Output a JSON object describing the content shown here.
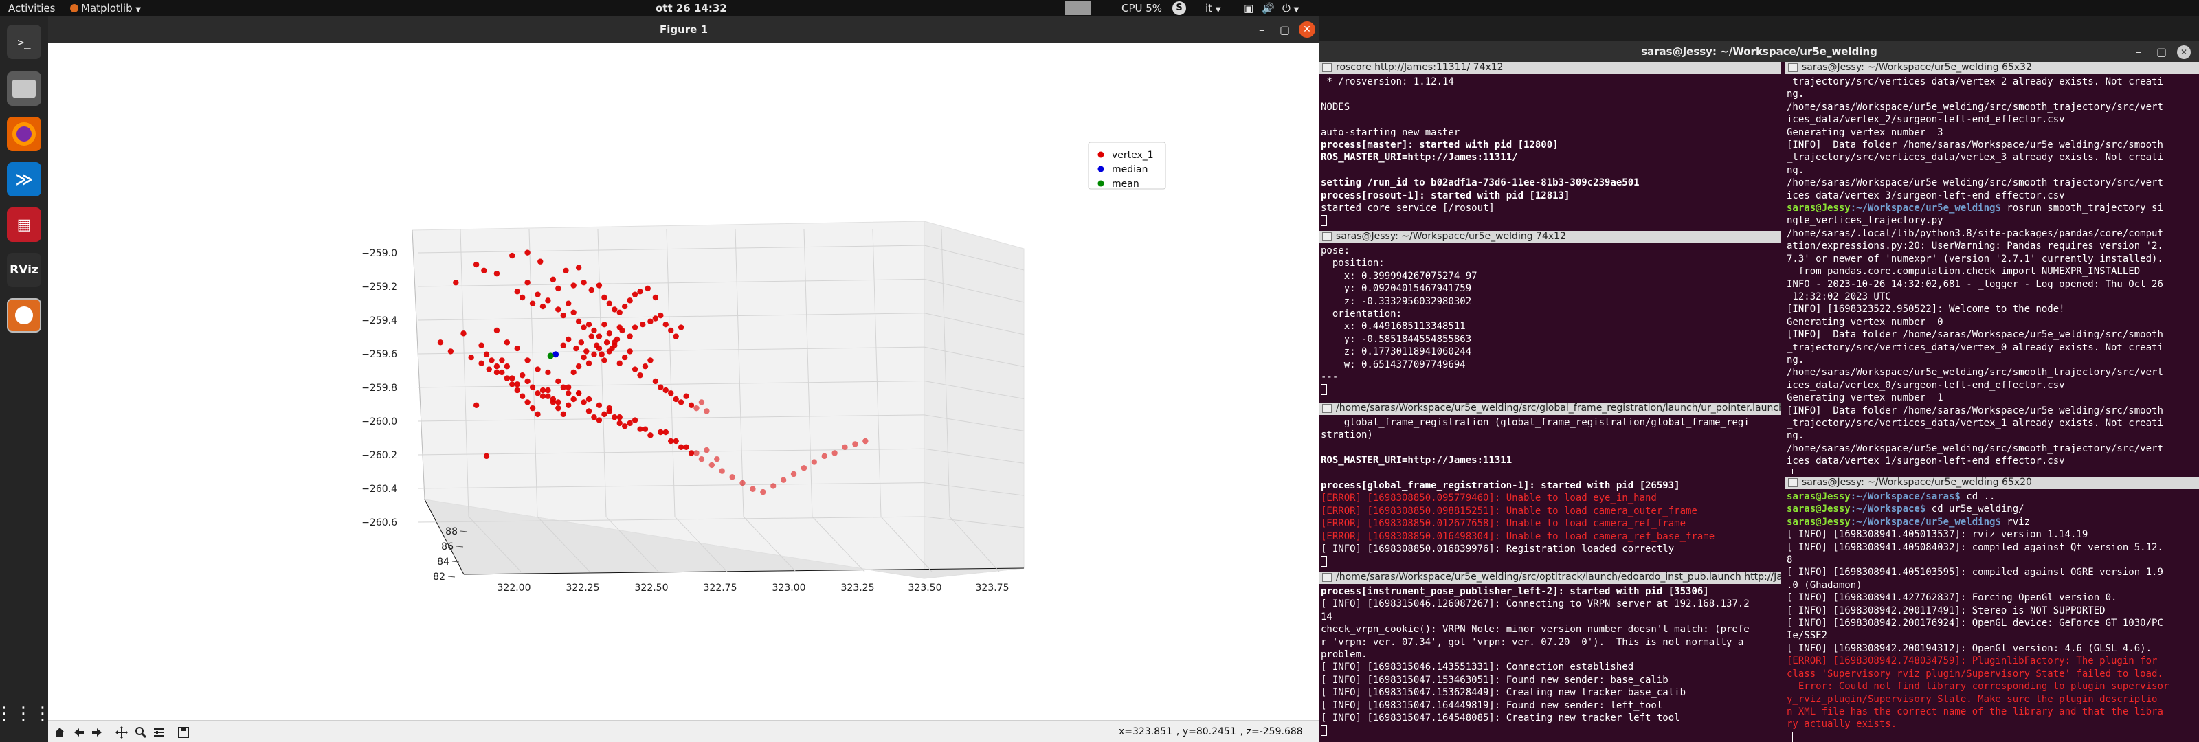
{
  "topbar": {
    "activities": "Activities",
    "app": "Matplotlib",
    "clock": "ott 26  14:32",
    "cpu": "CPU 5%",
    "lang": "it"
  },
  "dock": [
    {
      "name": "terminal",
      "bg": "#3a3a3a"
    },
    {
      "name": "files",
      "bg": "#5a5a5a"
    },
    {
      "name": "firefox",
      "bg": "#e66000"
    },
    {
      "name": "vscode",
      "bg": "#0a74c9"
    },
    {
      "name": "system-monitor",
      "bg": "#c01c28"
    },
    {
      "name": "rviz",
      "bg": "#2e2e2e"
    },
    {
      "name": "matplotlib",
      "bg": "#dd6a1e"
    }
  ],
  "dock_rviz_label": "RViz",
  "figure": {
    "title": "Figure 1",
    "coords": {
      "x": "x=323.851",
      "y": ", y=80.2451",
      "z": ", z=-259.688"
    }
  },
  "chart_data": {
    "type": "scatter",
    "title": "",
    "legend": {
      "placement": "top-right",
      "entries": [
        {
          "name": "vertex_1",
          "color": "#dd0000"
        },
        {
          "name": "median",
          "color": "#0000dd"
        },
        {
          "name": "mean",
          "color": "#008800"
        }
      ]
    },
    "x_ticks": [
      "322.00",
      "322.25",
      "322.50",
      "322.75",
      "323.00",
      "323.25",
      "323.50",
      "323.75"
    ],
    "y_ticks": [
      "88",
      "86",
      "84",
      "82"
    ],
    "z_ticks": [
      "−259.0",
      "−259.2",
      "−259.4",
      "−259.6",
      "−259.8",
      "−260.0",
      "−260.2",
      "−260.4",
      "−260.6"
    ],
    "xlim": [
      321.85,
      323.85
    ],
    "zlim": [
      -260.75,
      -258.95
    ],
    "series": [
      {
        "name": "vertex_1",
        "x": [
          322.02,
          322.1,
          322.13,
          322.18,
          322.24,
          322.3,
          322.35,
          322.4,
          322.42,
          322.45,
          322.48,
          322.5,
          322.52,
          322.55,
          322.58,
          322.6,
          322.62,
          322.64,
          322.66,
          322.68,
          322.7,
          322.72,
          322.74,
          322.77,
          322.8,
          322.26,
          322.28,
          322.3,
          322.32,
          322.34,
          322.36,
          322.38,
          322.42,
          322.44,
          322.46,
          322.48,
          322.5,
          322.52,
          322.54,
          322.56,
          322.58,
          322.6,
          322.62,
          322.64,
          322.66,
          322.44,
          322.46,
          322.49,
          322.51,
          322.53,
          322.55,
          322.57,
          322.59,
          322.61,
          322.63,
          322.65,
          322.67,
          322.7,
          322.72,
          322.75,
          322.78,
          322.8,
          322.82,
          322.84,
          322.86,
          322.88,
          322.9,
          321.96,
          322.0,
          322.05,
          322.08,
          322.12,
          322.15,
          322.18,
          322.2,
          322.22,
          322.24,
          322.26,
          322.28,
          322.3,
          322.32,
          322.34,
          322.36,
          322.38,
          322.4,
          322.42,
          322.44,
          322.46,
          322.48,
          322.5,
          322.52,
          322.54,
          322.56,
          322.58,
          322.6,
          322.62,
          322.64,
          322.66,
          322.68,
          322.7,
          322.72,
          322.74,
          322.76,
          322.78,
          322.8,
          322.82,
          322.84,
          322.86,
          322.88,
          322.9,
          322.92,
          322.94,
          322.96,
          322.98,
          323.0,
          322.1,
          322.12,
          322.14,
          322.16,
          322.18,
          322.2,
          322.22,
          322.24,
          322.26,
          322.28,
          322.3,
          322.32,
          322.34,
          322.36,
          322.38,
          322.4,
          322.42,
          322.44,
          322.46,
          322.48,
          322.5,
          322.52,
          322.54,
          322.56,
          322.58,
          322.6,
          322.62,
          322.64,
          322.66,
          322.68,
          322.72,
          322.76,
          322.84,
          322.88,
          322.92,
          322.96,
          323.0,
          323.04,
          322.14,
          322.18,
          322.22,
          322.26,
          322.3,
          322.34,
          322.38,
          322.42,
          322.46,
          322.5,
          322.54,
          322.58,
          322.62,
          322.66,
          322.7,
          322.74,
          322.78,
          322.82,
          322.86,
          322.9,
          322.94,
          322.98,
          323.02,
          323.06,
          323.1,
          323.14,
          323.18,
          323.22,
          323.26,
          323.3,
          323.34,
          323.38,
          323.42,
          323.46,
          323.5,
          323.54,
          323.58,
          323.62
        ],
        "z": [
          -259.3,
          -259.18,
          -259.22,
          -259.24,
          -259.12,
          -259.1,
          -259.16,
          -259.28,
          -259.34,
          -259.22,
          -259.32,
          -259.2,
          -259.3,
          -259.35,
          -259.32,
          -259.4,
          -259.44,
          -259.48,
          -259.5,
          -259.46,
          -259.42,
          -259.38,
          -259.36,
          -259.34,
          -259.4,
          -259.36,
          -259.4,
          -259.3,
          -259.44,
          -259.38,
          -259.46,
          -259.42,
          -259.48,
          -259.52,
          -259.44,
          -259.5,
          -259.56,
          -259.6,
          -259.58,
          -259.62,
          -259.66,
          -259.58,
          -259.64,
          -259.7,
          -259.6,
          -259.72,
          -259.68,
          -259.74,
          -259.7,
          -259.76,
          -259.66,
          -259.72,
          -259.78,
          -259.7,
          -259.74,
          -259.68,
          -259.62,
          -259.66,
          -259.6,
          -259.58,
          -259.56,
          -259.54,
          -259.52,
          -259.58,
          -259.62,
          -259.66,
          -259.6,
          -259.7,
          -259.76,
          -259.64,
          -259.8,
          -259.84,
          -259.88,
          -259.9,
          -259.82,
          -259.86,
          -259.94,
          -259.98,
          -259.92,
          -259.96,
          -260.0,
          -260.04,
          -260.02,
          -260.06,
          -260.08,
          -260.1,
          -260.0,
          -260.04,
          -259.9,
          -259.86,
          -259.8,
          -259.84,
          -259.78,
          -259.74,
          -259.82,
          -259.76,
          -259.72,
          -259.84,
          -259.8,
          -259.76,
          -259.88,
          -259.92,
          -259.86,
          -259.82,
          -259.96,
          -260.0,
          -260.02,
          -260.04,
          -260.08,
          -260.1,
          -260.06,
          -260.12,
          -260.14,
          -260.1,
          -260.16,
          -260.12,
          -259.72,
          -259.78,
          -259.82,
          -259.86,
          -259.9,
          -259.94,
          -259.98,
          -260.02,
          -260.06,
          -260.1,
          -260.14,
          -260.18,
          -260.06,
          -260.02,
          -260.1,
          -260.14,
          -260.18,
          -260.12,
          -260.08,
          -260.04,
          -260.1,
          -260.16,
          -260.2,
          -260.22,
          -260.18,
          -260.14,
          -260.2,
          -260.24,
          -260.26,
          -260.22,
          -260.28,
          -260.3,
          -260.36,
          -260.4,
          -260.44,
          -260.42,
          -260.48,
          -260.46,
          -259.62,
          -259.7,
          -259.74,
          -259.82,
          -259.88,
          -259.9,
          -259.96,
          -260.0,
          -260.04,
          -260.08,
          -260.12,
          -260.16,
          -260.2,
          -260.24,
          -260.28,
          -260.32,
          -260.3,
          -260.36,
          -260.4,
          -260.44,
          -260.48,
          -260.52,
          -260.56,
          -260.6,
          -260.64,
          -260.68,
          -260.7,
          -260.66,
          -260.62,
          -260.58,
          -260.54,
          -260.5,
          -260.46,
          -260.44,
          -260.4,
          -260.38,
          -260.36,
          -260.42
        ]
      },
      {
        "name": "median",
        "x": [
          322.41
        ],
        "z": [
          -259.78
        ]
      },
      {
        "name": "mean",
        "x": [
          322.39
        ],
        "z": [
          -259.79
        ]
      }
    ]
  },
  "terminal": {
    "title": "saras@Jessy: ~/Workspace/ur5e_welding"
  },
  "panes": [
    {
      "title": "roscore http://James:11311/ 74x12",
      "lines": [
        {
          "t": " * /rosversion: 1.12.14",
          "c": ""
        },
        {
          "t": "",
          "c": ""
        },
        {
          "t": "NODES",
          "c": ""
        },
        {
          "t": "",
          "c": ""
        },
        {
          "t": "auto-starting new master",
          "c": ""
        },
        {
          "t": "process[master]: started with pid [12800]",
          "c": "bold"
        },
        {
          "t": "ROS_MASTER_URI=http://James:11311/",
          "c": "bold"
        },
        {
          "t": "",
          "c": ""
        },
        {
          "t": "setting /run_id to b02adf1a-73d6-11ee-81b3-309c239ae501",
          "c": "bold"
        },
        {
          "t": "process[rosout-1]: started with pid [12813]",
          "c": "bold"
        },
        {
          "t": "started core service [/rosout]",
          "c": ""
        }
      ]
    },
    {
      "title": "saras@Jessy: ~/Workspace/ur5e_welding 74x12",
      "lines": [
        {
          "t": "pose:",
          "c": ""
        },
        {
          "t": "  position:",
          "c": ""
        },
        {
          "t": "    x: 0.399994267075274 97",
          "c": ""
        },
        {
          "t": "    y: 0.09204015467941759",
          "c": ""
        },
        {
          "t": "    z: -0.3332956032980302",
          "c": ""
        },
        {
          "t": "  orientation:",
          "c": ""
        },
        {
          "t": "    x: 0.4491685113348511",
          "c": ""
        },
        {
          "t": "    y: -0.5851844554855863",
          "c": ""
        },
        {
          "t": "    z: 0.17730118941060244",
          "c": ""
        },
        {
          "t": "    w: 0.6514377097749694",
          "c": ""
        },
        {
          "t": "---",
          "c": ""
        }
      ]
    },
    {
      "title": "/home/saras/Workspace/ur5e_welding/src/global_frame_registration/launch/ur_pointer.launch http://James:11311",
      "lines": [
        {
          "t": "    global_frame_registration (global_frame_registration/global_frame_regi",
          "c": ""
        },
        {
          "t": "stration)",
          "c": ""
        },
        {
          "t": "",
          "c": ""
        },
        {
          "t": "ROS_MASTER_URI=http://James:11311",
          "c": "bold"
        },
        {
          "t": "",
          "c": ""
        },
        {
          "t": "process[global_frame_registration-1]: started with pid [26593]",
          "c": "bold"
        },
        {
          "t": "[ERROR] [1698308850.095779460]: Unable to load eye_in_hand",
          "c": "err"
        },
        {
          "t": "[ERROR] [1698308850.098815251]: Unable to load camera_outer_frame",
          "c": "err"
        },
        {
          "t": "[ERROR] [1698308850.012677658]: Unable to load camera_ref_frame",
          "c": "err"
        },
        {
          "t": "[ERROR] [1698308850.016498304]: Unable to load camera_ref_base_frame",
          "c": "err"
        },
        {
          "t": "[ INFO] [1698308850.016839976]: Registration loaded correctly",
          "c": ""
        }
      ]
    },
    {
      "title": "/home/saras/Workspace/ur5e_welding/src/optitrack/launch/edoardo_inst_pub.launch http://James:11311",
      "lines": [
        {
          "t": "process[instrunent_pose_publisher_left-2]: started with pid [35306]",
          "c": "bold"
        },
        {
          "t": "[ INFO] [1698315046.126087267]: Connecting to VRPN server at 192.168.137.2",
          "c": ""
        },
        {
          "t": "14",
          "c": ""
        },
        {
          "t": "check_vrpn_cookie(): VRPN Note: minor version number doesn't match: (prefe",
          "c": ""
        },
        {
          "t": "r 'vrpn: ver. 07.34', got 'vrpn: ver. 07.20  0').  This is not normally a",
          "c": ""
        },
        {
          "t": "problem.",
          "c": ""
        },
        {
          "t": "[ INFO] [1698315046.143551331]: Connection established",
          "c": ""
        },
        {
          "t": "[ INFO] [1698315047.153463051]: Found new sender: base_calib",
          "c": ""
        },
        {
          "t": "[ INFO] [1698315047.153628449]: Creating new tracker base_calib",
          "c": ""
        },
        {
          "t": "[ INFO] [1698315047.164449819]: Found new sender: left_tool",
          "c": ""
        },
        {
          "t": "[ INFO] [1698315047.164548085]: Creating new tracker left_tool",
          "c": ""
        }
      ]
    },
    {
      "title": "saras@Jessy: ~/Workspace/ur5e_welding 65x32",
      "lines": [
        {
          "t": "_trajectory/src/vertices_data/vertex_2 already exists. Not creati",
          "c": ""
        },
        {
          "t": "ng.",
          "c": ""
        },
        {
          "t": "/home/saras/Workspace/ur5e_welding/src/smooth_trajectory/src/vert",
          "c": ""
        },
        {
          "t": "ices_data/vertex_2/surgeon-left-end_effector.csv",
          "c": ""
        },
        {
          "t": "Generating vertex number  3",
          "c": ""
        },
        {
          "t": "[INFO]  Data folder /home/saras/Workspace/ur5e_welding/src/smooth",
          "c": ""
        },
        {
          "t": "_trajectory/src/vertices_data/vertex_3 already exists. Not creati",
          "c": ""
        },
        {
          "t": "ng.",
          "c": ""
        },
        {
          "t": "/home/saras/Workspace/ur5e_welding/src/smooth_trajectory/src/vert",
          "c": ""
        },
        {
          "t": "ices_data/vertex_3/surgeon-left-end_effector.csv",
          "c": ""
        },
        {
          "t": "",
          "c": "prompt",
          "cmd": " rosrun smooth_trajectory si",
          "p": "saras@Jessy",
          "w": ":~/Workspace/ur5e_welding$"
        },
        {
          "t": "ngle_vertices_trajectory.py",
          "c": ""
        },
        {
          "t": "/home/saras/.local/lib/python3.8/site-packages/pandas/core/comput",
          "c": ""
        },
        {
          "t": "ation/expressions.py:20: UserWarning: Pandas requires version '2.",
          "c": ""
        },
        {
          "t": "7.3' or newer of 'numexpr' (version '2.7.1' currently installed).",
          "c": ""
        },
        {
          "t": "  from pandas.core.computation.check import NUMEXPR_INSTALLED",
          "c": ""
        },
        {
          "t": "INFO - 2023-10-26 14:32:02,681 - _logger - Log opened: Thu Oct 26",
          "c": ""
        },
        {
          "t": " 12:32:02 2023 UTC",
          "c": ""
        },
        {
          "t": "[INFO] [1698323522.950522]: Welcome to the node!",
          "c": ""
        },
        {
          "t": "Generating vertex number  0",
          "c": ""
        },
        {
          "t": "[INFO]  Data folder /home/saras/Workspace/ur5e_welding/src/smooth",
          "c": ""
        },
        {
          "t": "_trajectory/src/vertices_data/vertex_0 already exists. Not creati",
          "c": ""
        },
        {
          "t": "ng.",
          "c": ""
        },
        {
          "t": "/home/saras/Workspace/ur5e_welding/src/smooth_trajectory/src/vert",
          "c": ""
        },
        {
          "t": "ices_data/vertex_0/surgeon-left-end_effector.csv",
          "c": ""
        },
        {
          "t": "Generating vertex number  1",
          "c": ""
        },
        {
          "t": "[INFO]  Data folder /home/saras/Workspace/ur5e_welding/src/smooth",
          "c": ""
        },
        {
          "t": "_trajectory/src/vertices_data/vertex_1 already exists. Not creati",
          "c": ""
        },
        {
          "t": "ng.",
          "c": ""
        },
        {
          "t": "/home/saras/Workspace/ur5e_welding/src/smooth_trajectory/src/vert",
          "c": ""
        },
        {
          "t": "ices_data/vertex_1/surgeon-left-end_effector.csv",
          "c": ""
        }
      ]
    },
    {
      "title": "saras@Jessy: ~/Workspace/ur5e_welding 65x20",
      "lines": [
        {
          "t": "",
          "c": "prompt",
          "cmd": " cd ..",
          "p": "saras@Jessy",
          "w": ":~/Workspace/saras$"
        },
        {
          "t": "",
          "c": "prompt",
          "cmd": " cd ur5e_welding/",
          "p": "saras@Jessy",
          "w": ":~/Workspace$"
        },
        {
          "t": "",
          "c": "prompt",
          "cmd": " rviz",
          "p": "saras@Jessy",
          "w": ":~/Workspace/ur5e_welding$"
        },
        {
          "t": "[ INFO] [1698308941.405013537]: rviz version 1.14.19",
          "c": ""
        },
        {
          "t": "[ INFO] [1698308941.405084032]: compiled against Qt version 5.12.",
          "c": ""
        },
        {
          "t": "8",
          "c": ""
        },
        {
          "t": "[ INFO] [1698308941.405103595]: compiled against OGRE version 1.9",
          "c": ""
        },
        {
          "t": ".0 (Ghadamon)",
          "c": ""
        },
        {
          "t": "[ INFO] [1698308941.427762837]: Forcing OpenGl version 0.",
          "c": ""
        },
        {
          "t": "[ INFO] [1698308942.200117491]: Stereo is NOT SUPPORTED",
          "c": ""
        },
        {
          "t": "[ INFO] [1698308942.200176924]: OpenGL device: GeForce GT 1030/PC",
          "c": ""
        },
        {
          "t": "Ie/SSE2",
          "c": ""
        },
        {
          "t": "[ INFO] [1698308942.200194312]: OpenGl version: 4.6 (GLSL 4.6).",
          "c": ""
        },
        {
          "t": "[ERROR] [1698308942.748034759]: PluginlibFactory: The plugin for",
          "c": "err"
        },
        {
          "t": "class 'Supervisory_rviz_plugin/Supervisory State' failed to load.",
          "c": "err"
        },
        {
          "t": "  Error: Could not find library corresponding to plugin supervisor",
          "c": "err"
        },
        {
          "t": "y_rviz_plugin/Supervisory State. Make sure the plugin descriptio",
          "c": "err"
        },
        {
          "t": "n XML file has the correct name of the library and that the libra",
          "c": "err"
        },
        {
          "t": "ry actually exists.",
          "c": "err"
        }
      ]
    }
  ]
}
